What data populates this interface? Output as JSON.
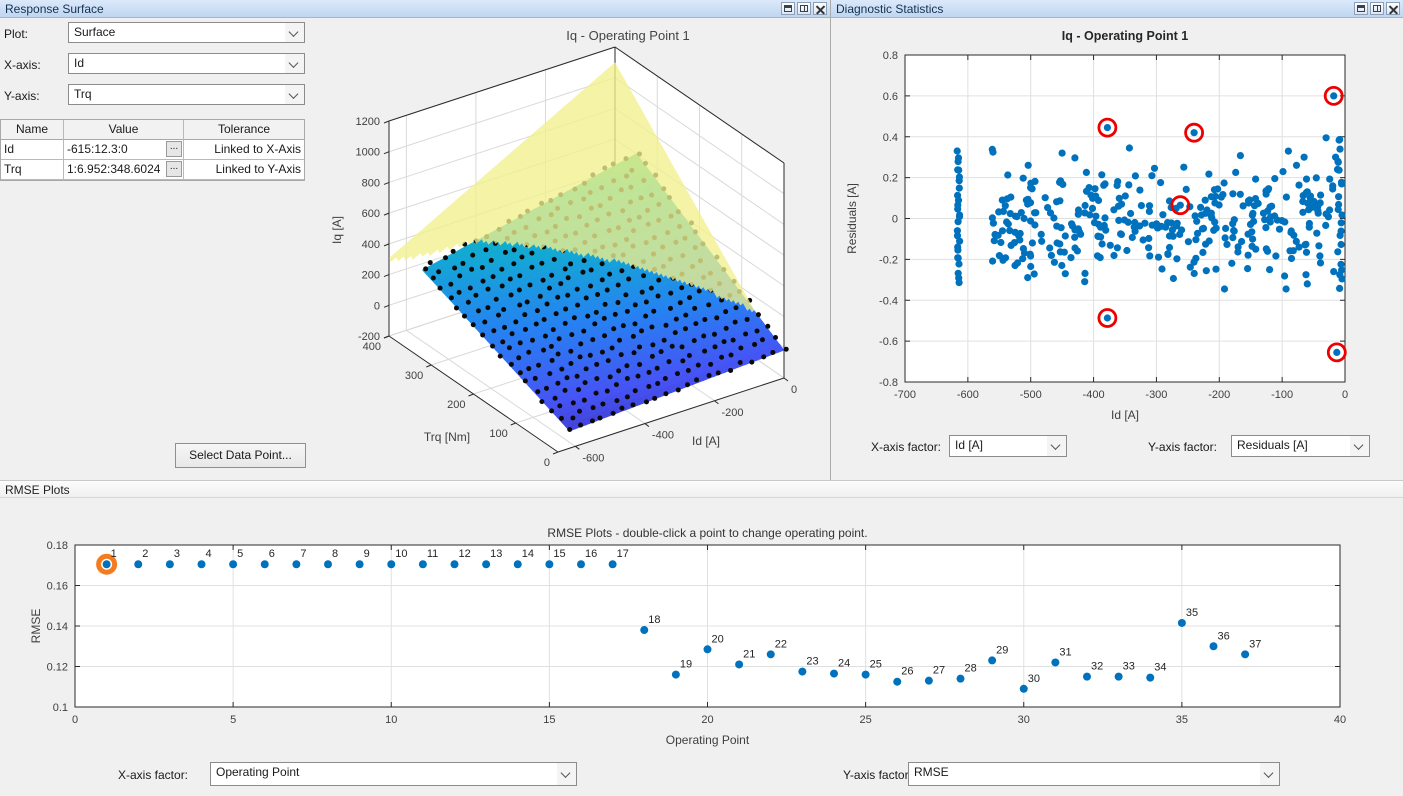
{
  "colors": {
    "marker_blue": "#0072BD",
    "outlier_ring_red": "#ee0000",
    "selected_ring_orange": "#f47c20",
    "grid_line": "#e0e0e0",
    "axis_line": "#2a2a2a",
    "tick_text": "#404040",
    "surface_dot_black": "#0a0a0a",
    "boundary_plane_yellow": "#f2ef8d",
    "header_blue_top": "#dce9fb",
    "header_blue_bottom": "#bfd6f0",
    "parula_stops": [
      [
        0,
        62,
        38,
        168
      ],
      [
        0.125,
        70,
        84,
        245
      ],
      [
        0.25,
        38,
        130,
        242
      ],
      [
        0.375,
        20,
        167,
        213
      ],
      [
        0.5,
        16,
        189,
        186
      ],
      [
        0.625,
        101,
        204,
        92
      ],
      [
        0.75,
        170,
        199,
        57
      ],
      [
        0.875,
        247,
        207,
        46
      ],
      [
        1,
        249,
        251,
        14
      ]
    ]
  },
  "panels": {
    "response_surface": {
      "title": "Response Surface",
      "window_icons": [
        "dock-icon",
        "maximize-icon",
        "close-icon"
      ],
      "controls": [
        {
          "label": "Plot:",
          "value": "Surface"
        },
        {
          "label": "X-axis:",
          "value": "Id"
        },
        {
          "label": "Y-axis:",
          "value": "Trq"
        }
      ],
      "table": {
        "headers": [
          "Name",
          "Value",
          "Tolerance"
        ],
        "ellipsis_label": "...",
        "rows": [
          {
            "name": "Id",
            "value": "-615:12.3:0",
            "tolerance": "Linked to X-Axis"
          },
          {
            "name": "Trq",
            "value": "1:6.952:348.6024",
            "tolerance": "Linked to Y-Axis"
          }
        ]
      },
      "select_button_label": "Select Data Point..."
    },
    "diagnostics": {
      "title": "Diagnostic Statistics",
      "x_factor_label": "X-axis factor:",
      "x_factor_value": "Id [A]",
      "y_factor_label": "Y-axis factor:",
      "y_factor_value": "Residuals [A]"
    },
    "rmse": {
      "title": "RMSE Plots",
      "x_factor_label": "X-axis factor:",
      "x_factor_value": "Operating Point",
      "y_factor_label": "Y-axis factor:",
      "y_factor_value": "RMSE"
    }
  },
  "chart_data": [
    {
      "type": "surface3d",
      "title": "Iq - Operating Point 1",
      "xlabel": "Id [A]",
      "ylabel": "Trq [Nm]",
      "zlabel": "Iq [A]",
      "x_ticks": [
        -600,
        -400,
        -200,
        0
      ],
      "x_range": [
        -650,
        0
      ],
      "y_ticks": [
        0,
        100,
        200,
        300,
        400
      ],
      "y_range": [
        0,
        400
      ],
      "z_ticks": [
        -200,
        0,
        200,
        400,
        600,
        800,
        1000,
        1200
      ],
      "z_range": [
        -200,
        1200
      ],
      "surface_fit": {
        "domain_id": [
          -615,
          0
        ],
        "domain_trq": [
          1,
          349
        ],
        "z_corners": {
          "id_min_trq_min": -90,
          "id_max_trq_min": -20,
          "id_min_trq_max": 300,
          "id_max_trq_max": 600
        }
      },
      "boundary_plane": {
        "z_id_min_trq_max": 350,
        "z_id_max_trq_max": 1100,
        "slope_trq": 3.0
      },
      "data_points": {
        "grid_nx": 21,
        "grid_ny": 18,
        "jitter_seed": 11
      }
    },
    {
      "type": "scatter",
      "title": "Iq - Operating Point 1",
      "xlabel": "Id [A]",
      "ylabel": "Residuals [A]",
      "xlim": [
        -700,
        0
      ],
      "ylim": [
        -0.8,
        0.8
      ],
      "x_ticks": [
        -700,
        -600,
        -500,
        -400,
        -300,
        -200,
        -100,
        0
      ],
      "y_ticks": [
        -0.8,
        -0.6,
        -0.4,
        -0.2,
        0,
        0.2,
        0.4,
        0.6,
        0.8
      ],
      "grid": true,
      "circled_outliers": [
        [
          -378,
          0.445
        ],
        [
          -240,
          0.42
        ],
        [
          -18,
          0.6
        ],
        [
          -262,
          0.065
        ],
        [
          -378,
          -0.487
        ],
        [
          -13,
          -0.655
        ]
      ],
      "left_column": {
        "x": -615,
        "n": 26,
        "y_min": -0.31,
        "y_max": 0.33
      },
      "right_column": {
        "x": -8,
        "n": 22,
        "y_min": -0.35,
        "y_max": 0.4
      },
      "extra_points": [
        [
          -560,
          0.325
        ],
        [
          -450,
          0.32
        ],
        [
          -30,
          0.395
        ],
        [
          -90,
          0.33
        ],
        [
          -65,
          0.3
        ],
        [
          -15,
          0.3
        ],
        [
          -12,
          0.24
        ],
        [
          -445,
          -0.27
        ],
        [
          -500,
          -0.235
        ],
        [
          -525,
          -0.23
        ],
        [
          -155,
          -0.245
        ],
        [
          -120,
          -0.25
        ],
        [
          -60,
          -0.32
        ],
        [
          -62,
          -0.275
        ],
        [
          -18,
          -0.26
        ]
      ],
      "cloud": {
        "seed": 20,
        "n": 330,
        "x_range": [
          -562,
          -18
        ],
        "y_scale": 0.45,
        "y_clip": 0.345
      }
    },
    {
      "type": "scatter",
      "title": "RMSE Plots - double-click a point to change operating point.",
      "xlabel": "Operating Point",
      "ylabel": "RMSE",
      "xlim": [
        0,
        40
      ],
      "ylim": [
        0.1,
        0.18
      ],
      "x_ticks": [
        0,
        5,
        10,
        15,
        20,
        25,
        30,
        35,
        40
      ],
      "y_ticks": [
        0.1,
        0.12,
        0.14,
        0.16,
        0.18
      ],
      "grid": true,
      "selected_point": 1,
      "points": [
        [
          1,
          0.1705
        ],
        [
          2,
          0.1705
        ],
        [
          3,
          0.1705
        ],
        [
          4,
          0.1705
        ],
        [
          5,
          0.1705
        ],
        [
          6,
          0.1705
        ],
        [
          7,
          0.1705
        ],
        [
          8,
          0.1705
        ],
        [
          9,
          0.1705
        ],
        [
          10,
          0.1705
        ],
        [
          11,
          0.1705
        ],
        [
          12,
          0.1705
        ],
        [
          13,
          0.1705
        ],
        [
          14,
          0.1705
        ],
        [
          15,
          0.1705
        ],
        [
          16,
          0.1705
        ],
        [
          17,
          0.1705
        ],
        [
          18,
          0.138
        ],
        [
          19,
          0.116
        ],
        [
          20,
          0.1285
        ],
        [
          21,
          0.121
        ],
        [
          22,
          0.126
        ],
        [
          23,
          0.1175
        ],
        [
          24,
          0.1165
        ],
        [
          25,
          0.116
        ],
        [
          26,
          0.1125
        ],
        [
          27,
          0.113
        ],
        [
          28,
          0.114
        ],
        [
          29,
          0.123
        ],
        [
          30,
          0.109
        ],
        [
          31,
          0.122
        ],
        [
          32,
          0.115
        ],
        [
          33,
          0.115
        ],
        [
          34,
          0.1145
        ],
        [
          35,
          0.1415
        ],
        [
          36,
          0.13
        ],
        [
          37,
          0.126
        ]
      ]
    }
  ]
}
